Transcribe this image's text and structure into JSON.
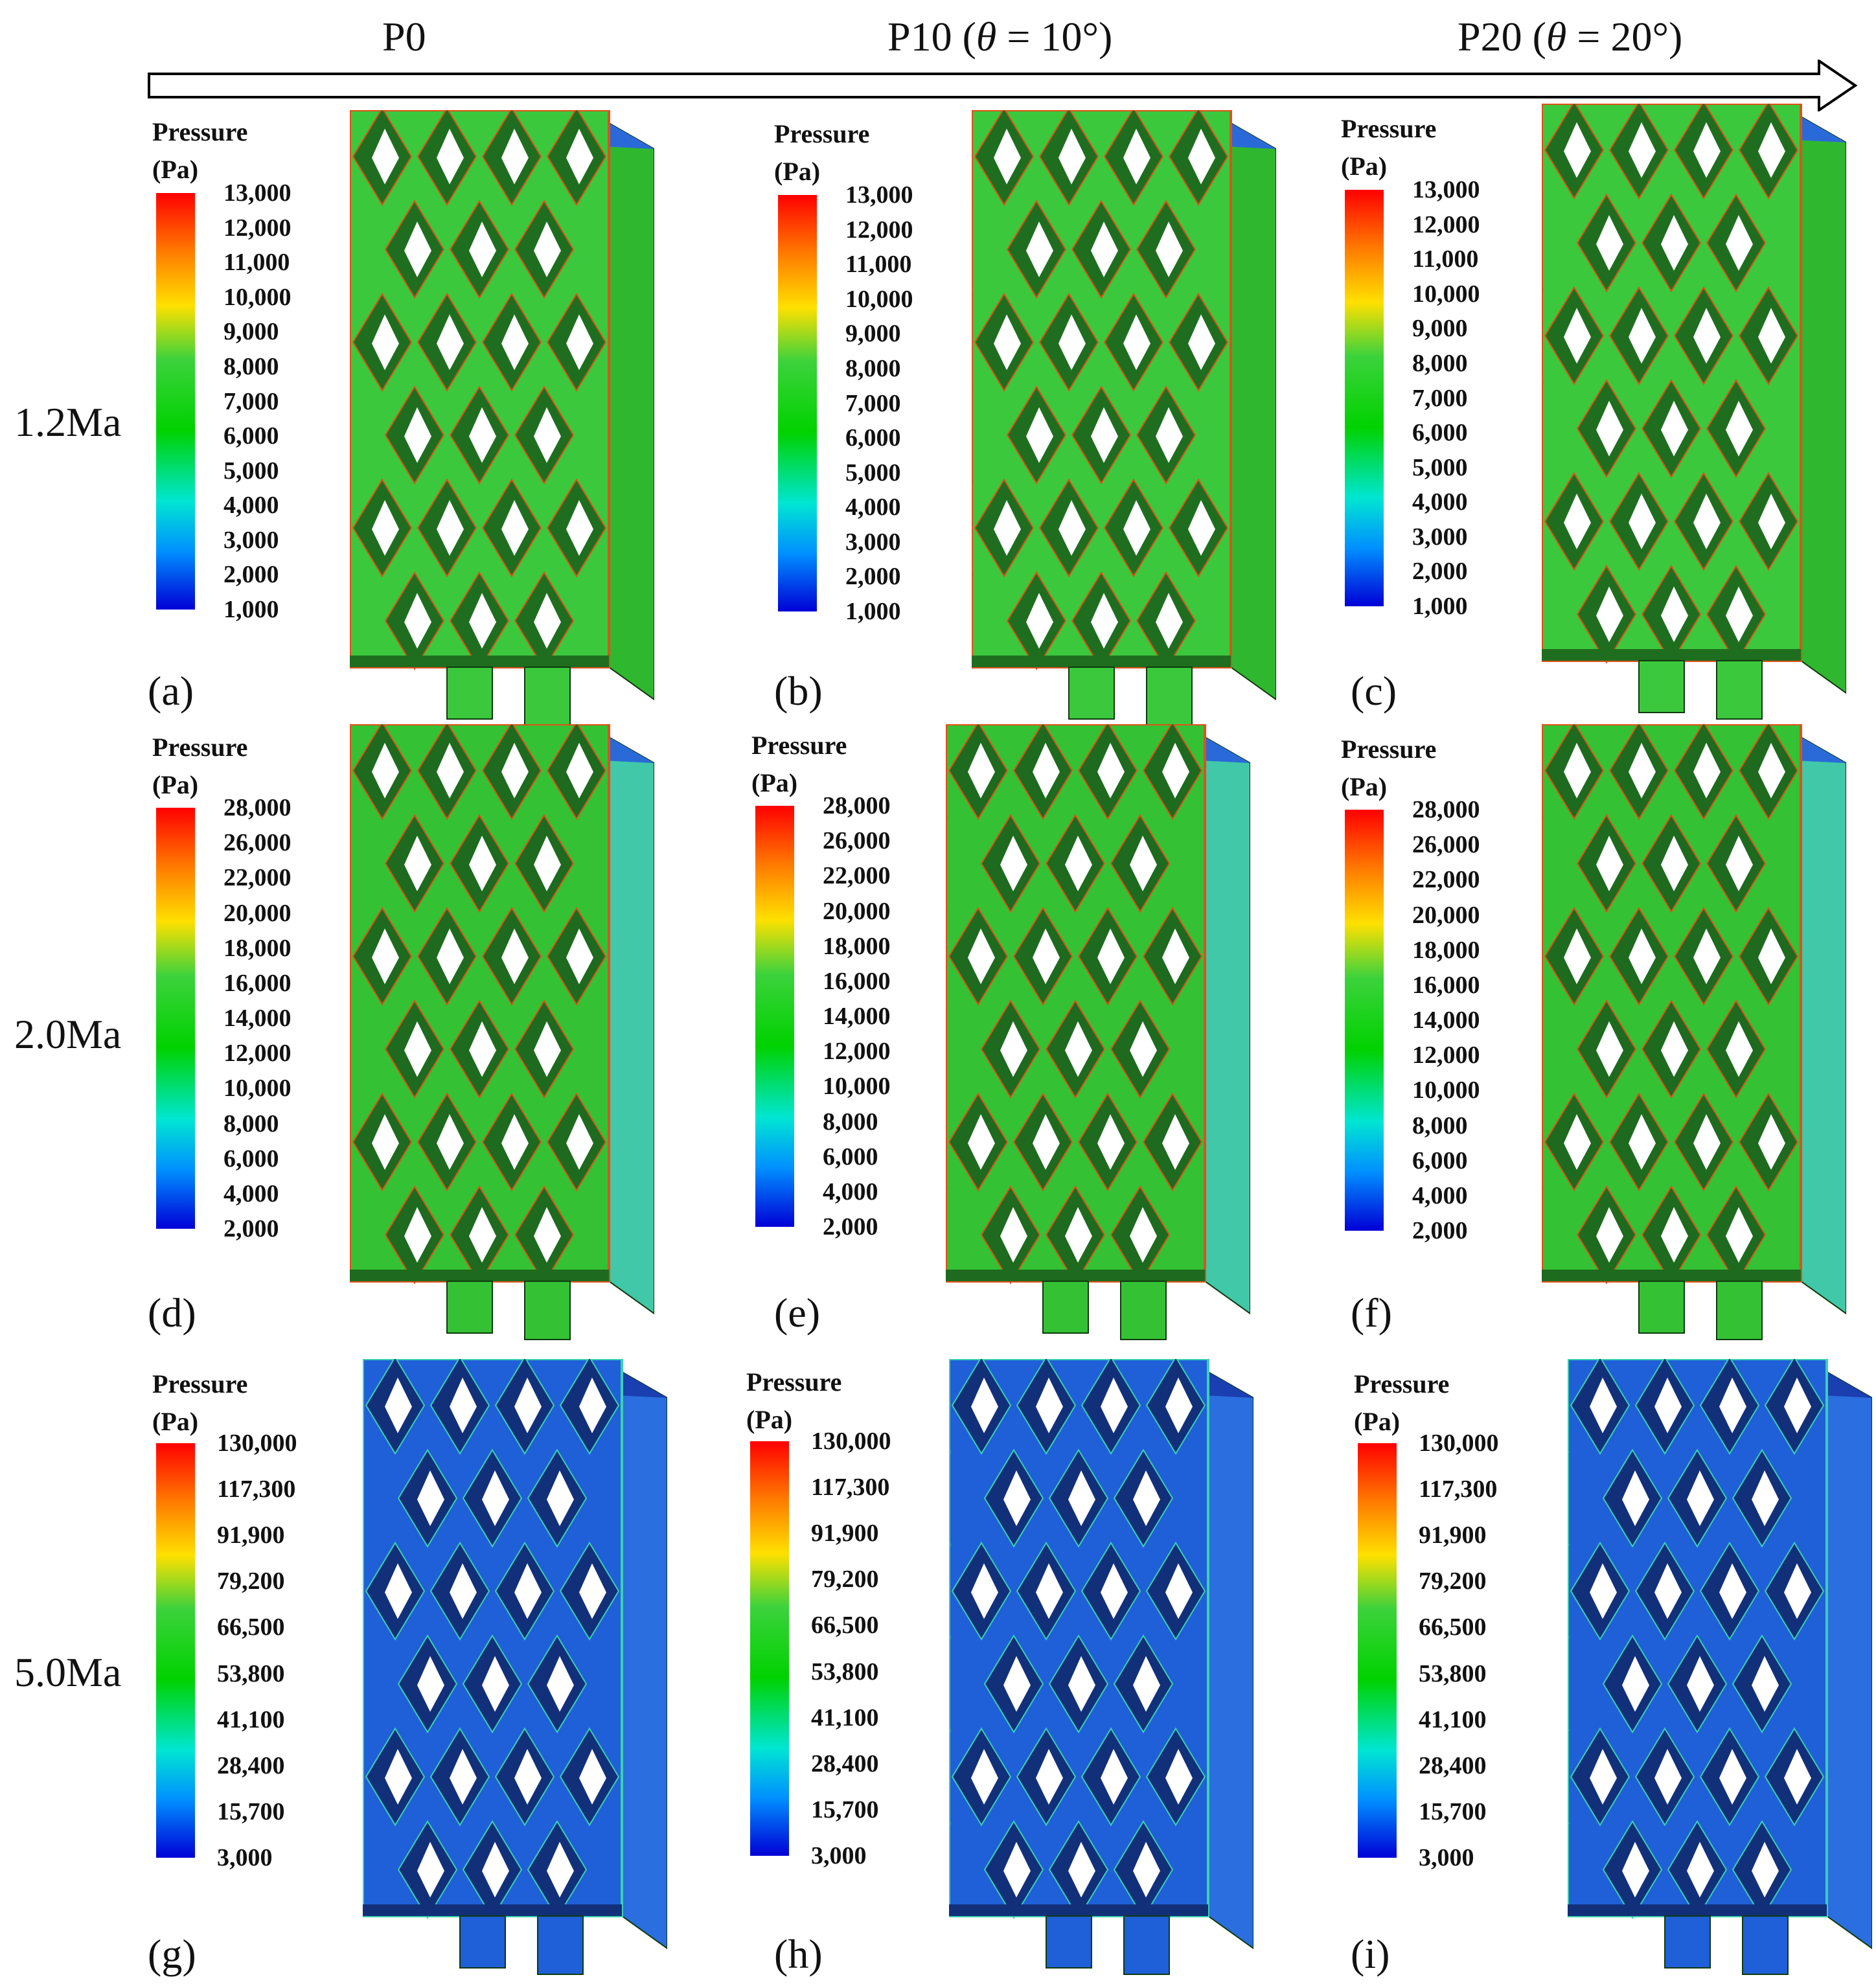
{
  "columns": [
    {
      "label": "P0",
      "theta_text": ""
    },
    {
      "label": "P10 (",
      "theta_text": "θ",
      "tail": " = 10°)"
    },
    {
      "label": "P20 (",
      "theta_text": "θ",
      "tail": " = 20°)"
    }
  ],
  "rows": [
    "1.2Ma",
    "2.0Ma",
    "5.0Ma"
  ],
  "legend_title": [
    "Pressure",
    "(Pa)"
  ],
  "legend_ticks": [
    [
      "13,000",
      "12,000",
      "11,000",
      "10,000",
      "9,000",
      "8,000",
      "7,000",
      "6,000",
      "5,000",
      "4,000",
      "3,000",
      "2,000",
      "1,000"
    ],
    [
      "28,000",
      "26,000",
      "22,000",
      "20,000",
      "18,000",
      "16,000",
      "14,000",
      "12,000",
      "10,000",
      "8,000",
      "6,000",
      "4,000",
      "2,000"
    ],
    [
      "130,000",
      "117,300",
      "91,900",
      "79,200",
      "66,500",
      "53,800",
      "41,100",
      "28,400",
      "15,700",
      "3,000"
    ]
  ],
  "panel_labels": [
    "(a)",
    "(b)",
    "(c)",
    "(d)",
    "(e)",
    "(f)",
    "(g)",
    "(h)",
    "(i)"
  ],
  "colors": {
    "row1_face": "#3cc83c",
    "row1_dark": "#1f6e1f",
    "row1_side": "#2fb82f",
    "row2_face": "#34c234",
    "row2_dark": "#1e6a1e",
    "row2_side": "#40c8a8",
    "row3_face": "#1f5fd8",
    "row3_dark": "#12307a",
    "row3_side": "#2a6ee0",
    "edge_hot": "#e0501a",
    "edge_cool": "#3ad0b0"
  }
}
